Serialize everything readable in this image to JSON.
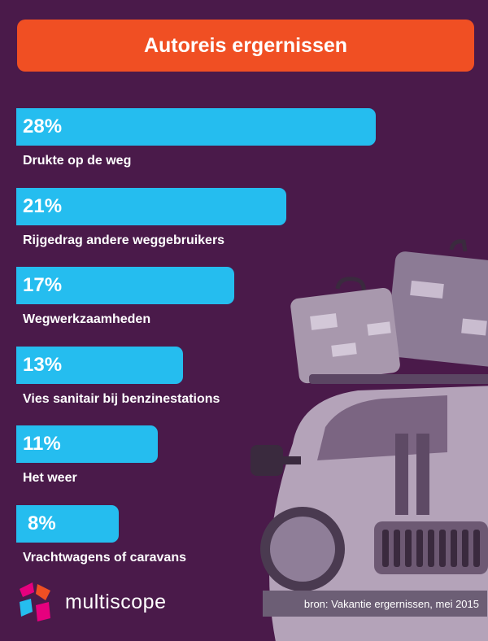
{
  "title": "Autoreis ergernissen",
  "chart_data": {
    "type": "bar",
    "orientation": "horizontal",
    "title": "Autoreis ergernissen",
    "categories": [
      "Drukte op de weg",
      "Rijgedrag andere weggebruikers",
      "Wegwerkzaamheden",
      "Vies sanitair bij benzinestations",
      "Het weer",
      "Vrachtwagens of caravans"
    ],
    "values": [
      28,
      21,
      17,
      13,
      11,
      8
    ],
    "value_labels": [
      "28%",
      "21%",
      "17%",
      "13%",
      "11%",
      "8%"
    ],
    "unit": "%",
    "bar_color": "#25bdef"
  },
  "brand": {
    "name": "multiscope"
  },
  "source": "bron: Vakantie ergernissen, mei 2015",
  "colors": {
    "background": "#4a1a4a",
    "title_bar": "#f04f23",
    "bar": "#25bdef",
    "source_box": "#6c5e75"
  },
  "icons": [
    "multiscope-logo-icon",
    "car-with-luggage-illustration"
  ]
}
